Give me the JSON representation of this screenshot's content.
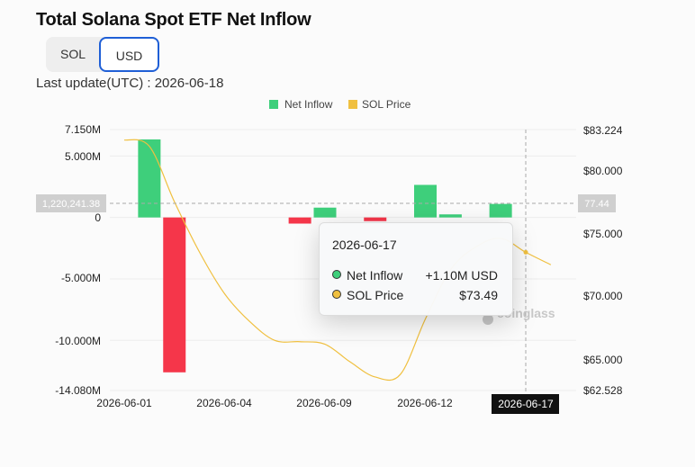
{
  "header": {
    "title": "Total Solana Spot ETF Net Inflow",
    "toggle_sol": "SOL",
    "toggle_usd": "USD",
    "last_update": "Last update(UTC) : 2026-06-18"
  },
  "colors": {
    "inflow_positive": "#3ecf7b",
    "inflow_negative": "#f5364a",
    "price_line": "#f0c040",
    "accent": "#1f5fd6"
  },
  "tooltip": {
    "date": "2026-06-17",
    "inflow_label": "Net Inflow",
    "inflow_value": "+1.10M USD",
    "price_label": "SOL Price",
    "price_value": "$73.49"
  },
  "crosshair": {
    "left_value": "1,220,241.38",
    "right_value": "77.44",
    "x_label": "2026-06-17"
  },
  "watermark": "coinglass",
  "chart_data": {
    "type": "bar",
    "title": "Total Solana Spot ETF Net Inflow",
    "legend": [
      "Net Inflow",
      "SOL Price"
    ],
    "legend_position": "top",
    "x_tick_labels": [
      "2026-06-01",
      "2026-06-04",
      "2026-06-09",
      "2026-06-12",
      "2026-06-17"
    ],
    "left_axis": {
      "ticks": [
        "7.150M",
        "5.000M",
        "0",
        "-5.000M",
        "-10.000M",
        "-14.080M"
      ],
      "range": [
        -14.08,
        7.15
      ],
      "unit": "M USD"
    },
    "right_axis": {
      "ticks": [
        "$83.224",
        "$80.000",
        "$75.000",
        "$70.000",
        "$65.000",
        "$62.528"
      ],
      "range": [
        62.528,
        83.224
      ]
    },
    "series": [
      {
        "name": "Net Inflow",
        "type": "bar",
        "categories": [
          "2026-06-02",
          "2026-06-03",
          "2026-06-08",
          "2026-06-09",
          "2026-06-11",
          "2026-06-13",
          "2026-06-14",
          "2026-06-16"
        ],
        "values": [
          6.35,
          -12.6,
          -0.5,
          0.8,
          -0.3,
          2.65,
          0.25,
          1.1
        ]
      },
      {
        "name": "SOL Price",
        "type": "line",
        "dates": [
          "2026-06-01",
          "2026-06-02",
          "2026-06-03",
          "2026-06-04",
          "2026-06-05",
          "2026-06-06",
          "2026-06-07",
          "2026-06-08",
          "2026-06-09",
          "2026-06-10",
          "2026-06-11",
          "2026-06-12",
          "2026-06-13",
          "2026-06-14",
          "2026-06-15",
          "2026-06-16",
          "2026-06-17",
          "2026-06-18"
        ],
        "values": [
          82.4,
          81.9,
          77.5,
          73.5,
          70.2,
          68.0,
          66.5,
          66.4,
          66.2,
          64.8,
          63.6,
          63.8,
          68.2,
          72.1,
          73.9,
          74.6,
          73.49,
          72.5
        ]
      }
    ]
  }
}
